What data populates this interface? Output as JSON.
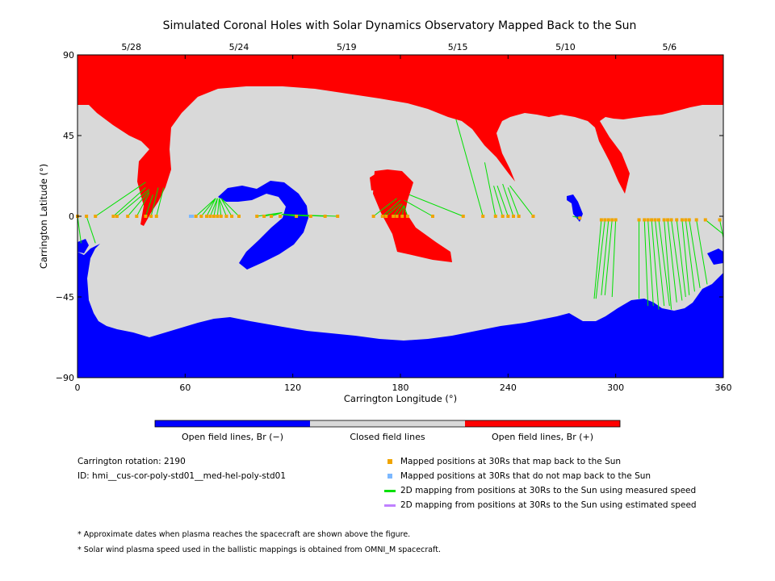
{
  "chart_data": {
    "type": "scatter",
    "title": "Simulated Coronal Holes with Solar Dynamics Observatory Mapped Back to the Sun",
    "xlabel": "Carrington Longitude (°)",
    "ylabel": "Carrington Latitude (°)",
    "xlim": [
      0,
      360
    ],
    "ylim": [
      -90,
      90
    ],
    "x_ticks": [
      "0",
      "60",
      "120",
      "180",
      "240",
      "300",
      "360"
    ],
    "y_ticks": [
      "90",
      "45",
      "0",
      "−45",
      "−90"
    ],
    "top_dates": [
      {
        "label": "5/28",
        "lon": 30
      },
      {
        "label": "5/24",
        "lon": 90
      },
      {
        "label": "5/19",
        "lon": 150
      },
      {
        "label": "5/15",
        "lon": 212
      },
      {
        "label": "5/10",
        "lon": 272
      },
      {
        "label": "5/6",
        "lon": 330
      }
    ],
    "colorbar": [
      {
        "label": "Open field lines, Br (−)",
        "color": "#0000ff"
      },
      {
        "label": "Closed field lines",
        "color": "#d9d9d9"
      },
      {
        "label": "Open field lines, Br (+)",
        "color": "#ff0000"
      }
    ],
    "colors": {
      "negative": "#0000ff",
      "closed": "#d9d9d9",
      "positive": "#ff0000",
      "mapped_point": "#f0a400",
      "unmapped_point": "#7cb8ff",
      "measured_line": "#00e000",
      "estimated_line": "#c080ff"
    },
    "series": [
      {
        "name": "Mapped positions at 30Rs that map back to the Sun",
        "points": [
          {
            "lon": 0,
            "lat": 0,
            "to_lon": 2,
            "to_lat": -15
          },
          {
            "lon": 5,
            "lat": 0,
            "to_lon": 10,
            "to_lat": -15
          },
          {
            "lon": 10,
            "lat": 0,
            "to_lon": 38,
            "to_lat": 19
          },
          {
            "lon": 20,
            "lat": 0,
            "to_lon": 38,
            "to_lat": 16
          },
          {
            "lon": 22,
            "lat": 0,
            "to_lon": 40,
            "to_lat": 15
          },
          {
            "lon": 28,
            "lat": 0,
            "to_lon": 40,
            "to_lat": 14
          },
          {
            "lon": 33,
            "lat": 0,
            "to_lon": 40,
            "to_lat": 13
          },
          {
            "lon": 38,
            "lat": 0,
            "to_lon": 42,
            "to_lat": 12
          },
          {
            "lon": 41,
            "lat": 0,
            "to_lon": 45,
            "to_lat": 16
          },
          {
            "lon": 44,
            "lat": 0,
            "to_lon": 48,
            "to_lat": 16
          },
          {
            "lon": 66,
            "lat": 0,
            "to_lon": 77,
            "to_lat": 10
          },
          {
            "lon": 69,
            "lat": 0,
            "to_lon": 77,
            "to_lat": 10
          },
          {
            "lon": 72,
            "lat": 0,
            "to_lon": 77,
            "to_lat": 10
          },
          {
            "lon": 74,
            "lat": 0,
            "to_lon": 78,
            "to_lat": 10
          },
          {
            "lon": 76,
            "lat": 0,
            "to_lon": 78,
            "to_lat": 10
          },
          {
            "lon": 78,
            "lat": 0,
            "to_lon": 79,
            "to_lat": 10
          },
          {
            "lon": 80,
            "lat": 0,
            "to_lon": 79,
            "to_lat": 10
          },
          {
            "lon": 83,
            "lat": 0,
            "to_lon": 79,
            "to_lat": 10
          },
          {
            "lon": 86,
            "lat": 0,
            "to_lon": 80,
            "to_lat": 10
          },
          {
            "lon": 90,
            "lat": 0,
            "to_lon": 80,
            "to_lat": 10
          },
          {
            "lon": 100,
            "lat": 0,
            "to_lon": 114,
            "to_lat": 2
          },
          {
            "lon": 104,
            "lat": 0,
            "to_lon": 114,
            "to_lat": 2
          },
          {
            "lon": 108,
            "lat": 0,
            "to_lon": 114,
            "to_lat": 2
          },
          {
            "lon": 113,
            "lat": 0,
            "to_lon": 114,
            "to_lat": 1
          },
          {
            "lon": 122,
            "lat": 0,
            "to_lon": 114,
            "to_lat": 1
          },
          {
            "lon": 130,
            "lat": 0,
            "to_lon": 114,
            "to_lat": 1
          },
          {
            "lon": 138,
            "lat": 0,
            "to_lon": 114,
            "to_lat": 1
          },
          {
            "lon": 145,
            "lat": 0,
            "to_lon": 114,
            "to_lat": 1
          },
          {
            "lon": 165,
            "lat": 0,
            "to_lon": 178,
            "to_lat": 10
          },
          {
            "lon": 170,
            "lat": 0,
            "to_lon": 180,
            "to_lat": 9
          },
          {
            "lon": 172,
            "lat": 0,
            "to_lon": 180,
            "to_lat": 7
          },
          {
            "lon": 176,
            "lat": 0,
            "to_lon": 181,
            "to_lat": 7
          },
          {
            "lon": 178,
            "lat": 0,
            "to_lon": 182,
            "to_lat": 6
          },
          {
            "lon": 181,
            "lat": 0,
            "to_lon": 182,
            "to_lat": 6
          },
          {
            "lon": 184,
            "lat": 0,
            "to_lon": 182,
            "to_lat": 6
          },
          {
            "lon": 198,
            "lat": 0,
            "to_lon": 182,
            "to_lat": 9
          },
          {
            "lon": 215,
            "lat": 0,
            "to_lon": 185,
            "to_lat": 12
          },
          {
            "lon": 226,
            "lat": 0,
            "to_lon": 211,
            "to_lat": 54
          },
          {
            "lon": 233,
            "lat": 0,
            "to_lon": 227,
            "to_lat": 30
          },
          {
            "lon": 237,
            "lat": 0,
            "to_lon": 232,
            "to_lat": 17
          },
          {
            "lon": 240,
            "lat": 0,
            "to_lon": 234,
            "to_lat": 17
          },
          {
            "lon": 243,
            "lat": 0,
            "to_lon": 237,
            "to_lat": 18
          },
          {
            "lon": 246,
            "lat": 0,
            "to_lon": 240,
            "to_lat": 16
          },
          {
            "lon": 254,
            "lat": 0,
            "to_lon": 241,
            "to_lat": 17
          },
          {
            "lon": 280,
            "lat": -1,
            "to_lon": 276,
            "to_lat": 0
          },
          {
            "lon": 292,
            "lat": -2,
            "to_lon": 288,
            "to_lat": -46
          },
          {
            "lon": 294,
            "lat": -2,
            "to_lon": 289,
            "to_lat": -46
          },
          {
            "lon": 296,
            "lat": -2,
            "to_lon": 292,
            "to_lat": -44
          },
          {
            "lon": 298,
            "lat": -2,
            "to_lon": 294,
            "to_lat": -44
          },
          {
            "lon": 300,
            "lat": -2,
            "to_lon": 298,
            "to_lat": -45
          },
          {
            "lon": 313,
            "lat": -2,
            "to_lon": 313,
            "to_lat": -46
          },
          {
            "lon": 316,
            "lat": -2,
            "to_lon": 318,
            "to_lat": -50
          },
          {
            "lon": 318,
            "lat": -2,
            "to_lon": 321,
            "to_lat": -50
          },
          {
            "lon": 320,
            "lat": -2,
            "to_lon": 324,
            "to_lat": -52
          },
          {
            "lon": 322,
            "lat": -2,
            "to_lon": 327,
            "to_lat": -50
          },
          {
            "lon": 324,
            "lat": -2,
            "to_lon": 330,
            "to_lat": -50
          },
          {
            "lon": 327,
            "lat": -2,
            "to_lon": 331,
            "to_lat": -52
          },
          {
            "lon": 329,
            "lat": -2,
            "to_lon": 334,
            "to_lat": -48
          },
          {
            "lon": 331,
            "lat": -2,
            "to_lon": 337,
            "to_lat": -47
          },
          {
            "lon": 334,
            "lat": -2,
            "to_lon": 339,
            "to_lat": -45
          },
          {
            "lon": 337,
            "lat": -2,
            "to_lon": 341,
            "to_lat": -44
          },
          {
            "lon": 339,
            "lat": -2,
            "to_lon": 344,
            "to_lat": -42
          },
          {
            "lon": 341,
            "lat": -2,
            "to_lon": 347,
            "to_lat": -40
          },
          {
            "lon": 345,
            "lat": -2,
            "to_lon": 351,
            "to_lat": -38
          },
          {
            "lon": 350,
            "lat": -2,
            "to_lon": 360,
            "to_lat": -10
          },
          {
            "lon": 358,
            "lat": -2,
            "to_lon": 360,
            "to_lat": -12
          }
        ]
      },
      {
        "name": "Mapped positions at 30Rs that do not map back to the Sun",
        "points": [
          {
            "lon": 63,
            "lat": 0
          },
          {
            "lon": 64,
            "lat": 0
          }
        ]
      }
    ],
    "legend_extra": [
      "2D mapping from positions at 30Rs to the Sun using measured speed",
      "2D mapping from positions at 30Rs to the Sun using estimated speed"
    ]
  },
  "info": {
    "carrington_rotation": "Carrington rotation: 2190",
    "id": "ID: hmi__cus-cor-poly-std01__med-hel-poly-std01"
  },
  "notes": [
    "* Approximate dates when plasma reaches the spacecraft are shown above the figure.",
    "* Solar wind plasma speed used in the ballistic mappings is obtained from OMNI_M spacecraft."
  ]
}
